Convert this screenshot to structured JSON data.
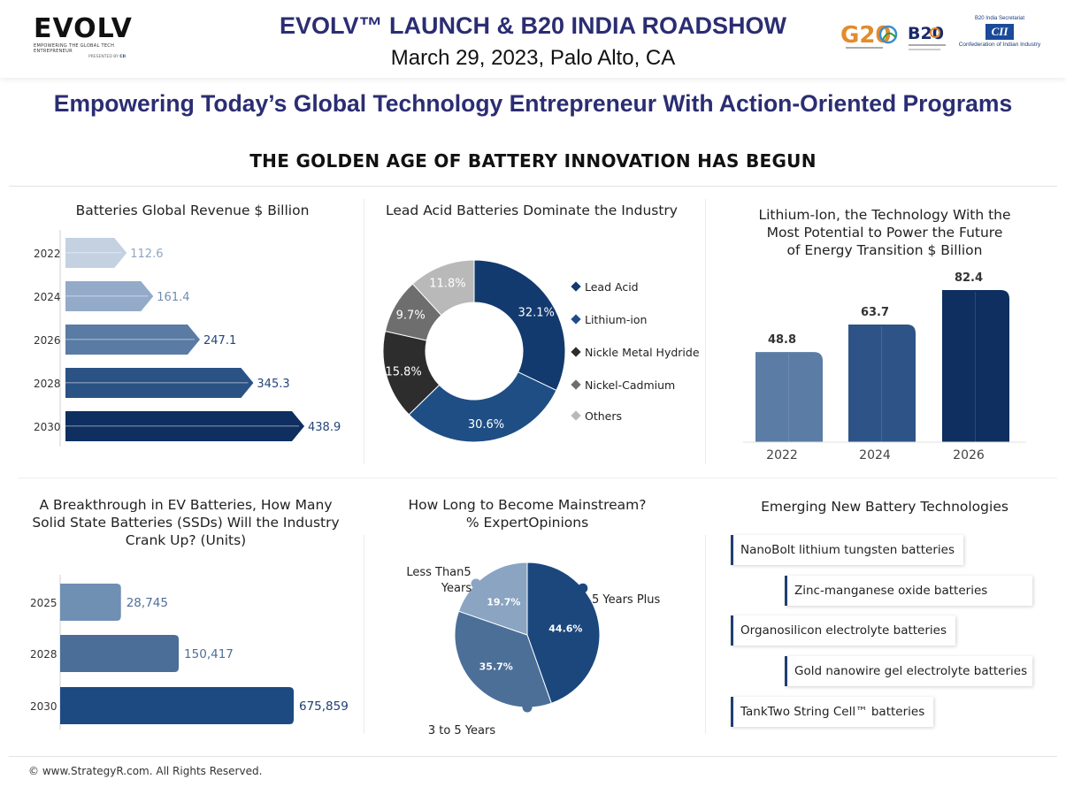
{
  "header": {
    "logo_text": "EVOLV",
    "logo_tagline": "EMPOWERING THE GLOBAL TECH ENTREPRENEUR",
    "logo_presented": "PRESENTED BY",
    "logo_presented_by": "CII",
    "title": "EVOLV™ LAUNCH & B20 INDIA ROADSHOW",
    "subtitle": "March 29, 2023, Palo Alto, CA",
    "g20_logo_text": "G20",
    "b20_logo_text": "B20",
    "cii_secretariat": "B20 India Secretariat",
    "cii_mark": "CII",
    "cii_name": "Confederation of Indian Industry"
  },
  "tagline": "Empowering Today’s Global Technology Entrepreneur With Action-Oriented Programs",
  "banner": "THE GOLDEN AGE OF BATTERY INNOVATION HAS BEGUN",
  "colors": {
    "navy": "#0e2f5f",
    "blue": "#1f4e85",
    "mid_blue": "#4f7199",
    "light_blue": "#8ea9c8",
    "pale_blue": "#c3d1e1",
    "dark_gray": "#2d2d2d",
    "gray": "#6e6e6e",
    "light_gray": "#b9b9b9",
    "title_navy": "#2b2d73"
  },
  "panels": {
    "revenue": {
      "title": "Batteries Global Revenue $ Billion"
    },
    "lead_acid": {
      "title": "Lead Acid Batteries Dominate the Industry"
    },
    "lithium": {
      "title_lines": [
        "Lithium-Ion, the Technology With the",
        "Most Potential to Power the Future",
        "of Energy Transition $ Billion"
      ]
    },
    "ssd": {
      "title_lines": [
        "A Breakthrough in EV Batteries, How Many",
        "Solid State Batteries (SSDs) Will the Industry",
        "Crank Up? (Units)"
      ]
    },
    "mainstream": {
      "title_lines": [
        "How Long to Become Mainstream?",
        "% ExpertOpinions"
      ]
    },
    "emerging": {
      "title": "Emerging New Battery Technologies",
      "items": [
        "NanoBolt lithium tungsten batteries",
        "Zinc-manganese oxide batteries",
        "Organosilicon electrolyte batteries",
        "Gold nanowire gel electrolyte batteries",
        "TankTwo String Cell™ batteries"
      ]
    }
  },
  "chart_data": [
    {
      "type": "bar",
      "orientation": "horizontal",
      "title": "Batteries Global Revenue $ Billion",
      "categories": [
        "2022",
        "2024",
        "2026",
        "2028",
        "2030"
      ],
      "values": [
        112.6,
        161.4,
        247.1,
        345.3,
        438.9
      ],
      "value_labels": [
        "112.6",
        "161.4",
        "247.1",
        "345.3",
        "438.9"
      ],
      "colors": [
        "#c3d1e1",
        "#93abc9",
        "#5a7ba3",
        "#2a5284",
        "#0e2f5f"
      ]
    },
    {
      "type": "pie",
      "donut": true,
      "title": "Lead Acid Batteries Dominate the Industry",
      "categories": [
        "Lead Acid",
        "Lithium-ion",
        "Nickle Metal Hydride",
        "Nickel-Cadmium",
        "Others"
      ],
      "values": [
        32.1,
        30.6,
        15.8,
        9.7,
        11.8
      ],
      "value_labels": [
        "32.1%",
        "30.6%",
        "15.8%",
        "9.7%",
        "11.8%"
      ],
      "colors": [
        "#123a6e",
        "#1f4e85",
        "#2d2d2d",
        "#6e6e6e",
        "#b9b9b9"
      ],
      "legend": "right"
    },
    {
      "type": "bar",
      "title": "Lithium-Ion, the Technology With the Most Potential to Power the Future of Energy Transition $ Billion",
      "categories": [
        "2022",
        "2024",
        "2026"
      ],
      "values": [
        48.8,
        63.7,
        82.4
      ],
      "value_labels": [
        "48.8",
        "63.7",
        "82.4"
      ],
      "colors": [
        "#5b7da5",
        "#2e5487",
        "#0e2f5f"
      ]
    },
    {
      "type": "bar",
      "orientation": "horizontal",
      "title": "A Breakthrough in EV Batteries, How Many Solid State Batteries (SSDs) Will the Industry Crank Up? (Units)",
      "categories": [
        "2025",
        "2028",
        "2030"
      ],
      "values": [
        28745,
        150417,
        675859
      ],
      "value_labels": [
        "28,745",
        "150,417",
        "675,859"
      ],
      "colors": [
        "#6f8fb3",
        "#4a6e98",
        "#1d4a80"
      ]
    },
    {
      "type": "pie",
      "title": "How Long to Become Mainstream? % ExpertOpinions",
      "categories": [
        "5 Years Plus",
        "3 to 5 Years",
        "Less Than5 Years"
      ],
      "category_label_lines": [
        [
          "5 Years Plus"
        ],
        [
          "3 to 5 Years"
        ],
        [
          "Less Than5",
          "Years"
        ]
      ],
      "values": [
        44.6,
        35.7,
        19.7
      ],
      "value_labels": [
        "44.6%",
        "35.7%",
        "19.7%"
      ],
      "colors": [
        "#1b477d",
        "#4c6f98",
        "#8aa4c2"
      ]
    }
  ],
  "footer": "© www.StrategyR.com. All Rights Reserved."
}
